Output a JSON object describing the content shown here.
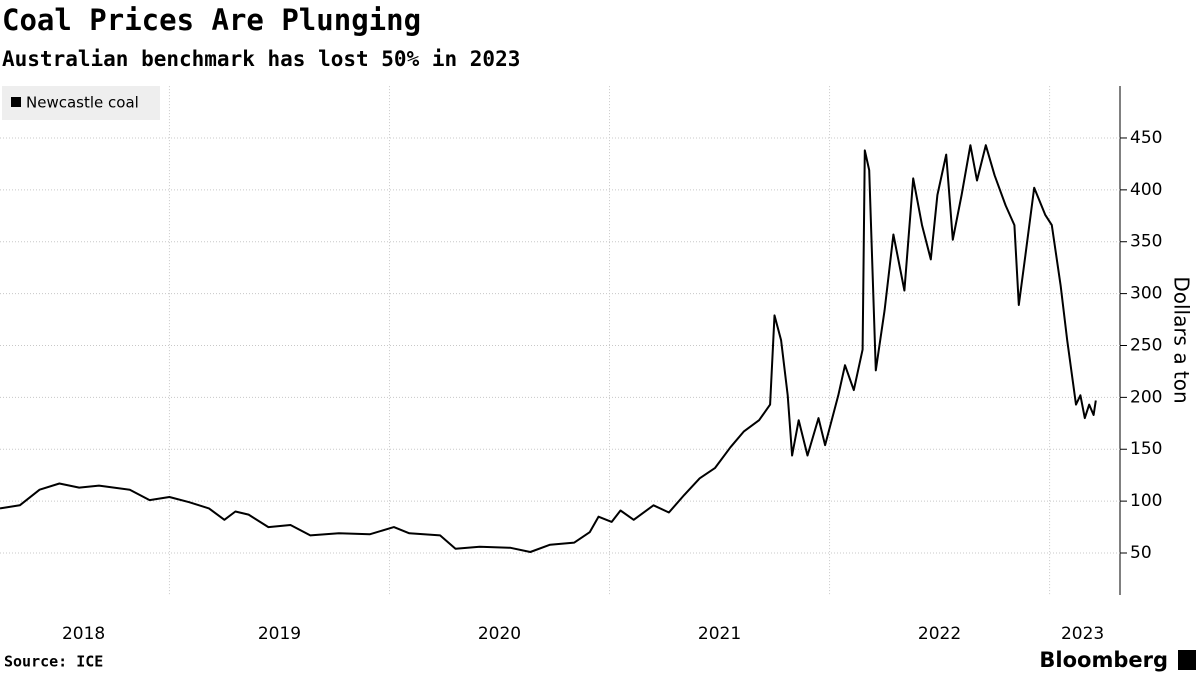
{
  "chart_data": {
    "type": "line",
    "title": "Coal Prices Are Plunging",
    "subtitle": "Australian benchmark has lost 50% in 2023",
    "y_label": "Dollars a ton",
    "source": "Source: ICE",
    "branding": "Bloomberg",
    "series": [
      {
        "name": "Newcastle coal",
        "color": "#000000",
        "x": [
          2018.23,
          2018.32,
          2018.41,
          2018.5,
          2018.59,
          2018.68,
          2018.82,
          2018.91,
          2019.0,
          2019.09,
          2019.18,
          2019.25,
          2019.3,
          2019.36,
          2019.45,
          2019.55,
          2019.64,
          2019.77,
          2019.91,
          2020.02,
          2020.09,
          2020.23,
          2020.3,
          2020.41,
          2020.55,
          2020.64,
          2020.73,
          2020.84,
          2020.91,
          2020.95,
          2021.01,
          2021.05,
          2021.11,
          2021.2,
          2021.27,
          2021.34,
          2021.41,
          2021.48,
          2021.55,
          2021.61,
          2021.68,
          2021.73,
          2021.75,
          2021.78,
          2021.81,
          2021.83,
          2021.86,
          2021.9,
          2021.95,
          2021.98,
          2022.04,
          2022.07,
          2022.11,
          2022.15,
          2022.16,
          2022.18,
          2022.21,
          2022.25,
          2022.29,
          2022.34,
          2022.38,
          2022.42,
          2022.46,
          2022.49,
          2022.53,
          2022.56,
          2022.6,
          2022.64,
          2022.67,
          2022.71,
          2022.75,
          2022.8,
          2022.84,
          2022.86,
          2022.89,
          2022.93,
          2022.98,
          2023.01,
          2023.05,
          2023.08,
          2023.12,
          2023.14,
          2023.16,
          2023.18,
          2023.2,
          2023.21
        ],
        "values": [
          93,
          96,
          111,
          117,
          113,
          115,
          111,
          101,
          104,
          99,
          93,
          82,
          90,
          87,
          75,
          77,
          67,
          69,
          68,
          75,
          69,
          67,
          54,
          56,
          55,
          51,
          58,
          60,
          70,
          85,
          80,
          91,
          82,
          96,
          89,
          106,
          122,
          132,
          152,
          167,
          178,
          193,
          279,
          255,
          202,
          144,
          178,
          144,
          180,
          154,
          202,
          231,
          207,
          246,
          438,
          419,
          226,
          284,
          357,
          303,
          411,
          366,
          333,
          395,
          434,
          352,
          395,
          443,
          409,
          443,
          414,
          385,
          366,
          289,
          337,
          402,
          376,
          366,
          308,
          255,
          193,
          202,
          180,
          193,
          183,
          197
        ]
      }
    ],
    "xlim": [
      2018.23,
      2023.32
    ],
    "xticks": [
      {
        "value": 2018.61,
        "label": "2018"
      },
      {
        "value": 2019.5,
        "label": "2019"
      },
      {
        "value": 2020.5,
        "label": "2020"
      },
      {
        "value": 2021.5,
        "label": "2021"
      },
      {
        "value": 2022.5,
        "label": "2022"
      },
      {
        "value": 2023.15,
        "label": "2023"
      }
    ],
    "xgrid": [
      2019,
      2020,
      2021,
      2022,
      2023
    ],
    "ylim": [
      10,
      500
    ],
    "yticks": [
      50,
      100,
      150,
      200,
      250,
      300,
      350,
      400,
      450
    ],
    "grid": true,
    "legend": "top-left"
  }
}
